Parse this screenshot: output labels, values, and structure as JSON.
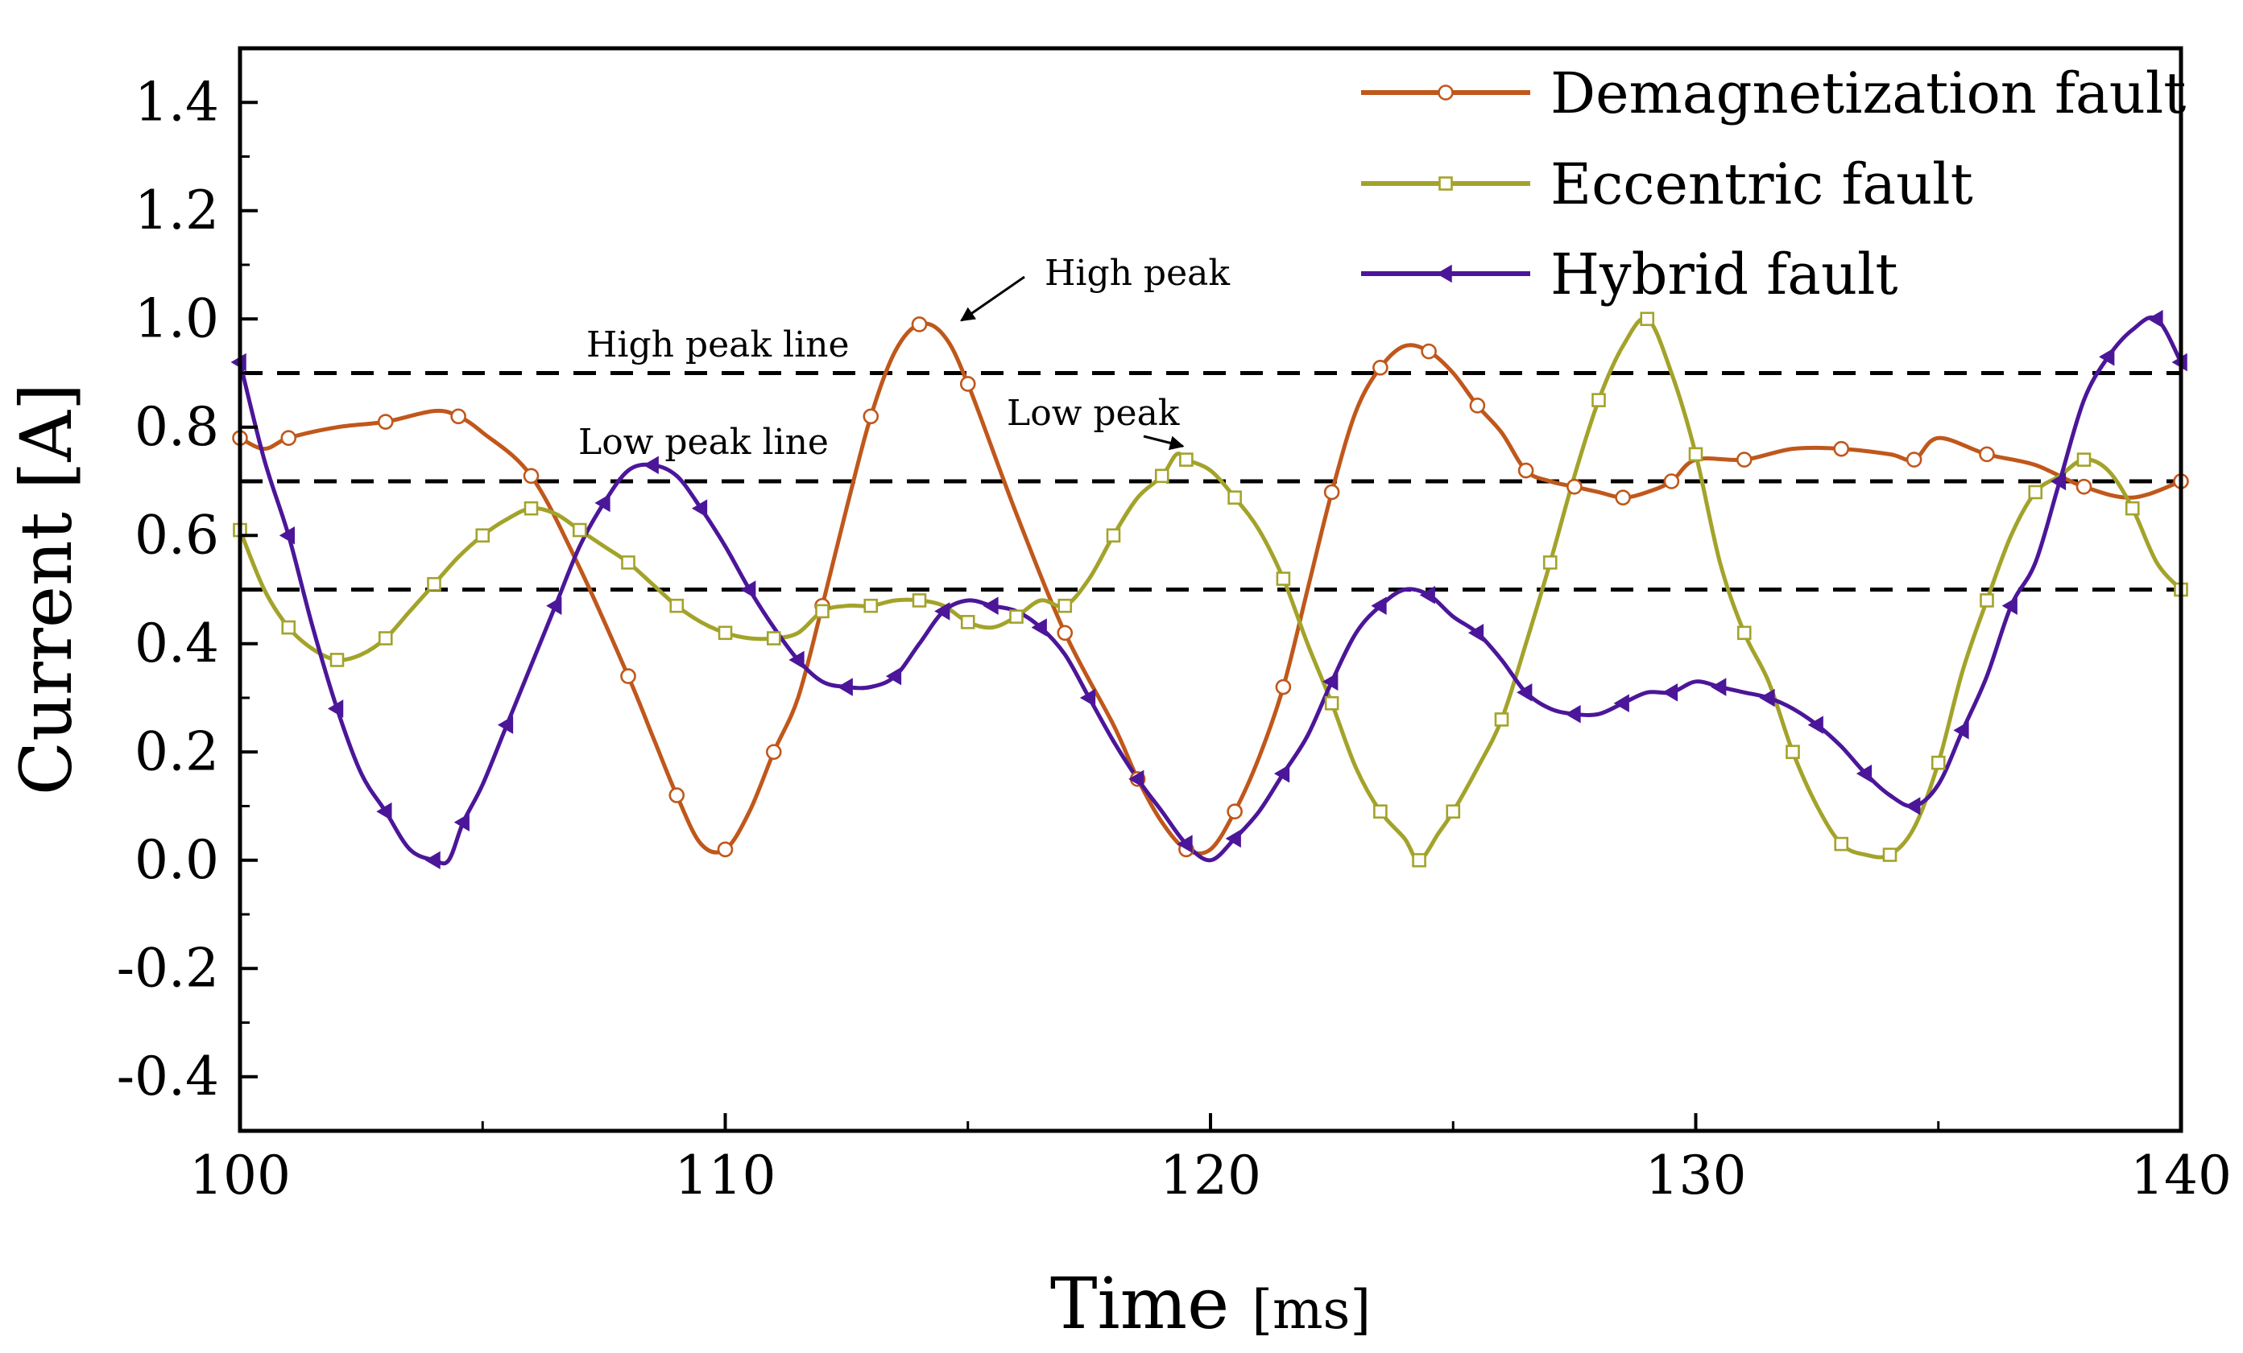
{
  "chart_data": {
    "type": "line",
    "title": "",
    "xlabel": "Time",
    "xlabel_unit": "[ms]",
    "ylabel": "Current [A]",
    "xlim": [
      100,
      140
    ],
    "ylim": [
      -0.5,
      1.5
    ],
    "xticks": [
      100,
      110,
      120,
      130,
      140
    ],
    "xtick_labels": [
      "100",
      "110",
      "120",
      "130",
      "140"
    ],
    "yticks": [
      -0.4,
      -0.2,
      0.0,
      0.2,
      0.4,
      0.6,
      0.8,
      1.0,
      1.2,
      1.4
    ],
    "ytick_labels": [
      "-0.4",
      "-0.2",
      "0.0",
      "0.2",
      "0.4",
      "0.6",
      "0.8",
      "1.0",
      "1.2",
      "1.4"
    ],
    "grid": false,
    "legend_position": "top-right",
    "series": [
      {
        "name": "Demagnetization fault",
        "color": "#c0571b",
        "marker": "circle",
        "points": [
          [
            100,
            0.78
          ],
          [
            100.5,
            0.76
          ],
          [
            101,
            0.78
          ],
          [
            102,
            0.8
          ],
          [
            103,
            0.81
          ],
          [
            104,
            0.83
          ],
          [
            104.5,
            0.82
          ],
          [
            105,
            0.79
          ],
          [
            106,
            0.71
          ],
          [
            107,
            0.54
          ],
          [
            108,
            0.34
          ],
          [
            108.5,
            0.23
          ],
          [
            109,
            0.12
          ],
          [
            109.5,
            0.03
          ],
          [
            110,
            0.02
          ],
          [
            110.5,
            0.09
          ],
          [
            111,
            0.2
          ],
          [
            111.5,
            0.3
          ],
          [
            112,
            0.47
          ],
          [
            112.5,
            0.65
          ],
          [
            113,
            0.82
          ],
          [
            113.5,
            0.94
          ],
          [
            114,
            0.99
          ],
          [
            114.5,
            0.97
          ],
          [
            115,
            0.88
          ],
          [
            116,
            0.64
          ],
          [
            117,
            0.42
          ],
          [
            118,
            0.25
          ],
          [
            118.5,
            0.15
          ],
          [
            119,
            0.07
          ],
          [
            119.5,
            0.02
          ],
          [
            120,
            0.02
          ],
          [
            120.5,
            0.09
          ],
          [
            121,
            0.19
          ],
          [
            121.5,
            0.32
          ],
          [
            122,
            0.5
          ],
          [
            122.5,
            0.68
          ],
          [
            123,
            0.83
          ],
          [
            123.5,
            0.91
          ],
          [
            124,
            0.95
          ],
          [
            124.5,
            0.94
          ],
          [
            125,
            0.9
          ],
          [
            125.5,
            0.84
          ],
          [
            126,
            0.79
          ],
          [
            126.5,
            0.72
          ],
          [
            127,
            0.7
          ],
          [
            127.5,
            0.69
          ],
          [
            128,
            0.68
          ],
          [
            128.5,
            0.67
          ],
          [
            129,
            0.68
          ],
          [
            129.5,
            0.7
          ],
          [
            130,
            0.74
          ],
          [
            131,
            0.74
          ],
          [
            132,
            0.76
          ],
          [
            133,
            0.76
          ],
          [
            134,
            0.75
          ],
          [
            134.5,
            0.74
          ],
          [
            135,
            0.78
          ],
          [
            136,
            0.75
          ],
          [
            137,
            0.73
          ],
          [
            138,
            0.69
          ],
          [
            139,
            0.67
          ],
          [
            140,
            0.7
          ]
        ]
      },
      {
        "name": "Eccentric fault",
        "color": "#a3a32b",
        "marker": "square",
        "points": [
          [
            100,
            0.61
          ],
          [
            100.5,
            0.5
          ],
          [
            101,
            0.43
          ],
          [
            101.5,
            0.39
          ],
          [
            102,
            0.37
          ],
          [
            102.5,
            0.38
          ],
          [
            103,
            0.41
          ],
          [
            103.5,
            0.46
          ],
          [
            104,
            0.51
          ],
          [
            104.5,
            0.56
          ],
          [
            105,
            0.6
          ],
          [
            105.5,
            0.63
          ],
          [
            106,
            0.65
          ],
          [
            106.5,
            0.64
          ],
          [
            107,
            0.61
          ],
          [
            107.5,
            0.58
          ],
          [
            108,
            0.55
          ],
          [
            108.5,
            0.51
          ],
          [
            109,
            0.47
          ],
          [
            109.5,
            0.44
          ],
          [
            110,
            0.42
          ],
          [
            110.5,
            0.41
          ],
          [
            111,
            0.41
          ],
          [
            111.5,
            0.42
          ],
          [
            112,
            0.46
          ],
          [
            112.5,
            0.47
          ],
          [
            113,
            0.47
          ],
          [
            113.5,
            0.48
          ],
          [
            114,
            0.48
          ],
          [
            114.5,
            0.47
          ],
          [
            115,
            0.44
          ],
          [
            115.5,
            0.43
          ],
          [
            116,
            0.45
          ],
          [
            116.5,
            0.48
          ],
          [
            117,
            0.47
          ],
          [
            117.5,
            0.52
          ],
          [
            118,
            0.6
          ],
          [
            118.5,
            0.67
          ],
          [
            119,
            0.71
          ],
          [
            119.3,
            0.75
          ],
          [
            119.5,
            0.74
          ],
          [
            120,
            0.72
          ],
          [
            120.5,
            0.67
          ],
          [
            121,
            0.61
          ],
          [
            121.5,
            0.52
          ],
          [
            122,
            0.4
          ],
          [
            122.5,
            0.29
          ],
          [
            123,
            0.17
          ],
          [
            123.5,
            0.09
          ],
          [
            124,
            0.04
          ],
          [
            124.3,
            0.0
          ],
          [
            124.7,
            0.05
          ],
          [
            125,
            0.09
          ],
          [
            125.5,
            0.17
          ],
          [
            126,
            0.26
          ],
          [
            126.5,
            0.4
          ],
          [
            127,
            0.55
          ],
          [
            127.5,
            0.71
          ],
          [
            128,
            0.85
          ],
          [
            128.5,
            0.95
          ],
          [
            129,
            1.0
          ],
          [
            129.5,
            0.9
          ],
          [
            130,
            0.75
          ],
          [
            130.5,
            0.55
          ],
          [
            131,
            0.42
          ],
          [
            131.5,
            0.33
          ],
          [
            132,
            0.2
          ],
          [
            132.5,
            0.1
          ],
          [
            133,
            0.03
          ],
          [
            133.5,
            0.01
          ],
          [
            134,
            0.01
          ],
          [
            134.5,
            0.06
          ],
          [
            135,
            0.18
          ],
          [
            135.5,
            0.35
          ],
          [
            136,
            0.48
          ],
          [
            136.5,
            0.6
          ],
          [
            137,
            0.68
          ],
          [
            137.5,
            0.71
          ],
          [
            138,
            0.74
          ],
          [
            138.5,
            0.72
          ],
          [
            139,
            0.65
          ],
          [
            139.5,
            0.55
          ],
          [
            140,
            0.5
          ]
        ]
      },
      {
        "name": "Hybrid fault",
        "color": "#4b1699",
        "marker": "triangle-left",
        "points": [
          [
            100,
            0.92
          ],
          [
            100.5,
            0.74
          ],
          [
            101,
            0.6
          ],
          [
            101.5,
            0.43
          ],
          [
            102,
            0.28
          ],
          [
            102.5,
            0.16
          ],
          [
            103,
            0.09
          ],
          [
            103.5,
            0.02
          ],
          [
            104,
            0.0
          ],
          [
            104.3,
            0.0
          ],
          [
            104.6,
            0.07
          ],
          [
            105,
            0.14
          ],
          [
            105.5,
            0.25
          ],
          [
            106,
            0.36
          ],
          [
            106.5,
            0.47
          ],
          [
            107,
            0.58
          ],
          [
            107.5,
            0.66
          ],
          [
            108,
            0.72
          ],
          [
            108.5,
            0.73
          ],
          [
            109,
            0.71
          ],
          [
            109.5,
            0.65
          ],
          [
            110,
            0.58
          ],
          [
            110.5,
            0.5
          ],
          [
            111,
            0.43
          ],
          [
            111.5,
            0.37
          ],
          [
            112,
            0.33
          ],
          [
            112.5,
            0.32
          ],
          [
            113,
            0.32
          ],
          [
            113.5,
            0.34
          ],
          [
            114,
            0.4
          ],
          [
            114.5,
            0.46
          ],
          [
            115,
            0.48
          ],
          [
            115.5,
            0.47
          ],
          [
            116,
            0.46
          ],
          [
            116.5,
            0.43
          ],
          [
            117,
            0.38
          ],
          [
            117.5,
            0.3
          ],
          [
            118,
            0.22
          ],
          [
            118.5,
            0.15
          ],
          [
            119,
            0.09
          ],
          [
            119.5,
            0.03
          ],
          [
            120,
            0.0
          ],
          [
            120.5,
            0.04
          ],
          [
            121,
            0.09
          ],
          [
            121.5,
            0.16
          ],
          [
            122,
            0.23
          ],
          [
            122.5,
            0.33
          ],
          [
            123,
            0.42
          ],
          [
            123.5,
            0.47
          ],
          [
            124,
            0.5
          ],
          [
            124.5,
            0.49
          ],
          [
            125,
            0.45
          ],
          [
            125.5,
            0.42
          ],
          [
            126,
            0.37
          ],
          [
            126.5,
            0.31
          ],
          [
            127,
            0.28
          ],
          [
            127.5,
            0.27
          ],
          [
            128,
            0.27
          ],
          [
            128.5,
            0.29
          ],
          [
            129,
            0.31
          ],
          [
            129.5,
            0.31
          ],
          [
            130,
            0.33
          ],
          [
            130.5,
            0.32
          ],
          [
            131,
            0.31
          ],
          [
            131.5,
            0.3
          ],
          [
            132,
            0.28
          ],
          [
            132.5,
            0.25
          ],
          [
            133,
            0.21
          ],
          [
            133.5,
            0.16
          ],
          [
            134,
            0.12
          ],
          [
            134.5,
            0.1
          ],
          [
            135,
            0.14
          ],
          [
            135.5,
            0.24
          ],
          [
            136,
            0.34
          ],
          [
            136.5,
            0.47
          ],
          [
            137,
            0.55
          ],
          [
            137.5,
            0.7
          ],
          [
            138,
            0.85
          ],
          [
            138.5,
            0.93
          ],
          [
            139,
            0.98
          ],
          [
            139.5,
            1.0
          ],
          [
            140,
            0.92
          ]
        ]
      }
    ],
    "reference_lines": [
      {
        "name": "High peak line",
        "y": 0.9
      },
      {
        "name": "Low peak line",
        "y": 0.7
      },
      {
        "name": "",
        "y": 0.5
      }
    ],
    "annotations": [
      {
        "text": "High peak",
        "x": 114.3,
        "y": 1.0
      },
      {
        "text": "Low peak",
        "x": 119.3,
        "y": 0.75
      },
      {
        "text": "High peak line",
        "x": 111.5,
        "y": 0.95
      },
      {
        "text": "Low peak line",
        "x": 111.0,
        "y": 0.76
      }
    ]
  }
}
